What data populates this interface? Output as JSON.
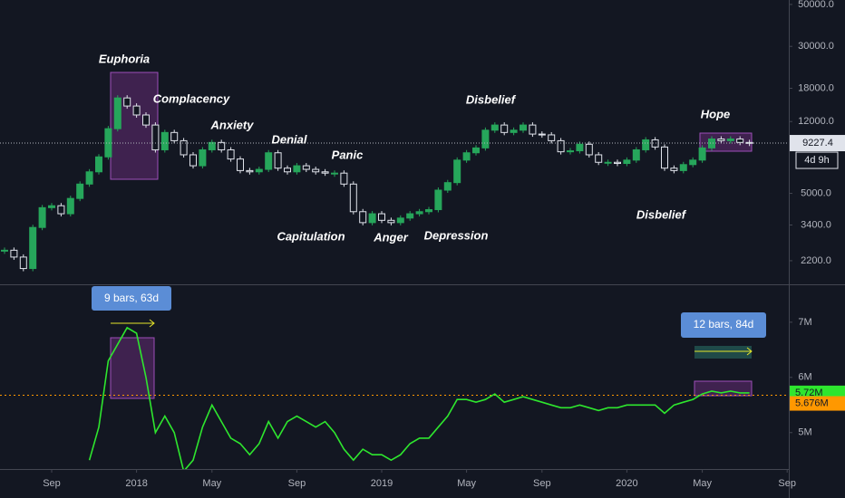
{
  "chart_data": [
    {
      "type": "candlestick",
      "log_scale": true,
      "ylim": [
        1650,
        52800
      ],
      "yticks": [
        {
          "value": 50000,
          "label": "50000.0"
        },
        {
          "value": 30000,
          "label": "30000.0"
        },
        {
          "value": 18000,
          "label": "18000.0"
        },
        {
          "value": 12000,
          "label": "12000.0"
        },
        {
          "value": 5000,
          "label": "5000.0"
        },
        {
          "value": 3400,
          "label": "3400.0"
        },
        {
          "value": 2200,
          "label": "2200.0"
        }
      ],
      "up_color": "#26a65b",
      "down_color": "#e0e3eb",
      "values": [
        2500,
        2300,
        2000,
        3300,
        4200,
        4300,
        3900,
        4700,
        5600,
        6500,
        7800,
        11000,
        16000,
        14500,
        13000,
        11500,
        8500,
        10500,
        9500,
        8000,
        7000,
        8500,
        9300,
        8500,
        7600,
        6600,
        6500,
        6700,
        8200,
        6800,
        6500,
        7000,
        6700,
        6500,
        6400,
        6400,
        5600,
        4000,
        3500,
        3900,
        3600,
        3500,
        3700,
        3900,
        4000,
        4100,
        5200,
        5700,
        7500,
        8200,
        8700,
        10800,
        11500,
        10500,
        10800,
        11500,
        10300,
        10200,
        9500,
        8300,
        8400,
        9100,
        8000,
        7300,
        7300,
        7200,
        7500,
        8500,
        9600,
        8800,
        6800,
        6600,
        7100,
        7500,
        8700,
        9700,
        9500,
        9700,
        9300,
        9227.4,
        null,
        null,
        null,
        null
      ],
      "last_price": 9227.4,
      "countdown": "4d 9h",
      "annotations": [
        "Euphoria",
        "Complacency",
        "Anxiety",
        "Denial",
        "Panic",
        "Capitulation",
        "Anger",
        "Depression",
        "Disbelief",
        "Disbelief",
        "Hope"
      ]
    },
    {
      "type": "line",
      "color": "#2ee62e",
      "ylim": [
        4.34,
        7.67
      ],
      "yticks": [
        {
          "value": 7,
          "label": "7M"
        },
        {
          "value": 6,
          "label": "6M"
        },
        {
          "value": 5,
          "label": "5M"
        }
      ],
      "categories": [
        null,
        null,
        null,
        null,
        null,
        "Sep",
        null,
        null,
        null,
        null,
        null,
        null,
        null,
        null,
        "2018",
        null,
        null,
        null,
        null,
        null,
        null,
        null,
        "May",
        null,
        null,
        null,
        null,
        null,
        null,
        null,
        null,
        "Sep",
        null,
        null,
        null,
        null,
        null,
        null,
        null,
        null,
        "2019",
        null,
        null,
        null,
        null,
        null,
        null,
        null,
        null,
        "May",
        null,
        null,
        null,
        null,
        null,
        null,
        null,
        "Sep",
        null,
        null,
        null,
        null,
        null,
        null,
        null,
        null,
        "2020",
        null,
        null,
        null,
        null,
        null,
        null,
        null,
        "May",
        null,
        null,
        null,
        null,
        null,
        null,
        null,
        null,
        "Sep"
      ],
      "values": [
        null,
        null,
        null,
        null,
        null,
        null,
        null,
        null,
        null,
        4.5,
        5.1,
        6.3,
        6.6,
        6.9,
        6.8,
        6.0,
        5.0,
        5.3,
        5.0,
        4.3,
        4.5,
        5.1,
        5.5,
        5.2,
        4.9,
        4.8,
        4.6,
        4.8,
        5.2,
        4.9,
        5.2,
        5.3,
        5.2,
        5.1,
        5.2,
        5.0,
        4.7,
        4.5,
        4.7,
        4.6,
        4.6,
        4.5,
        4.6,
        4.8,
        4.9,
        4.9,
        5.1,
        5.3,
        5.6,
        5.6,
        5.55,
        5.6,
        5.7,
        5.55,
        5.6,
        5.65,
        5.6,
        5.55,
        5.5,
        5.45,
        5.45,
        5.5,
        5.45,
        5.4,
        5.45,
        5.45,
        5.5,
        5.5,
        5.5,
        5.5,
        5.35,
        5.5,
        5.55,
        5.6,
        5.7,
        5.75,
        5.72,
        5.75,
        5.72,
        5.72,
        null,
        null,
        null,
        null
      ],
      "value_labels": {
        "79": "5.72M"
      },
      "reference_line": {
        "value": 5.676,
        "label": "5.676M"
      },
      "measures": [
        "9 bars, 63d",
        "12 bars, 84d"
      ]
    }
  ]
}
